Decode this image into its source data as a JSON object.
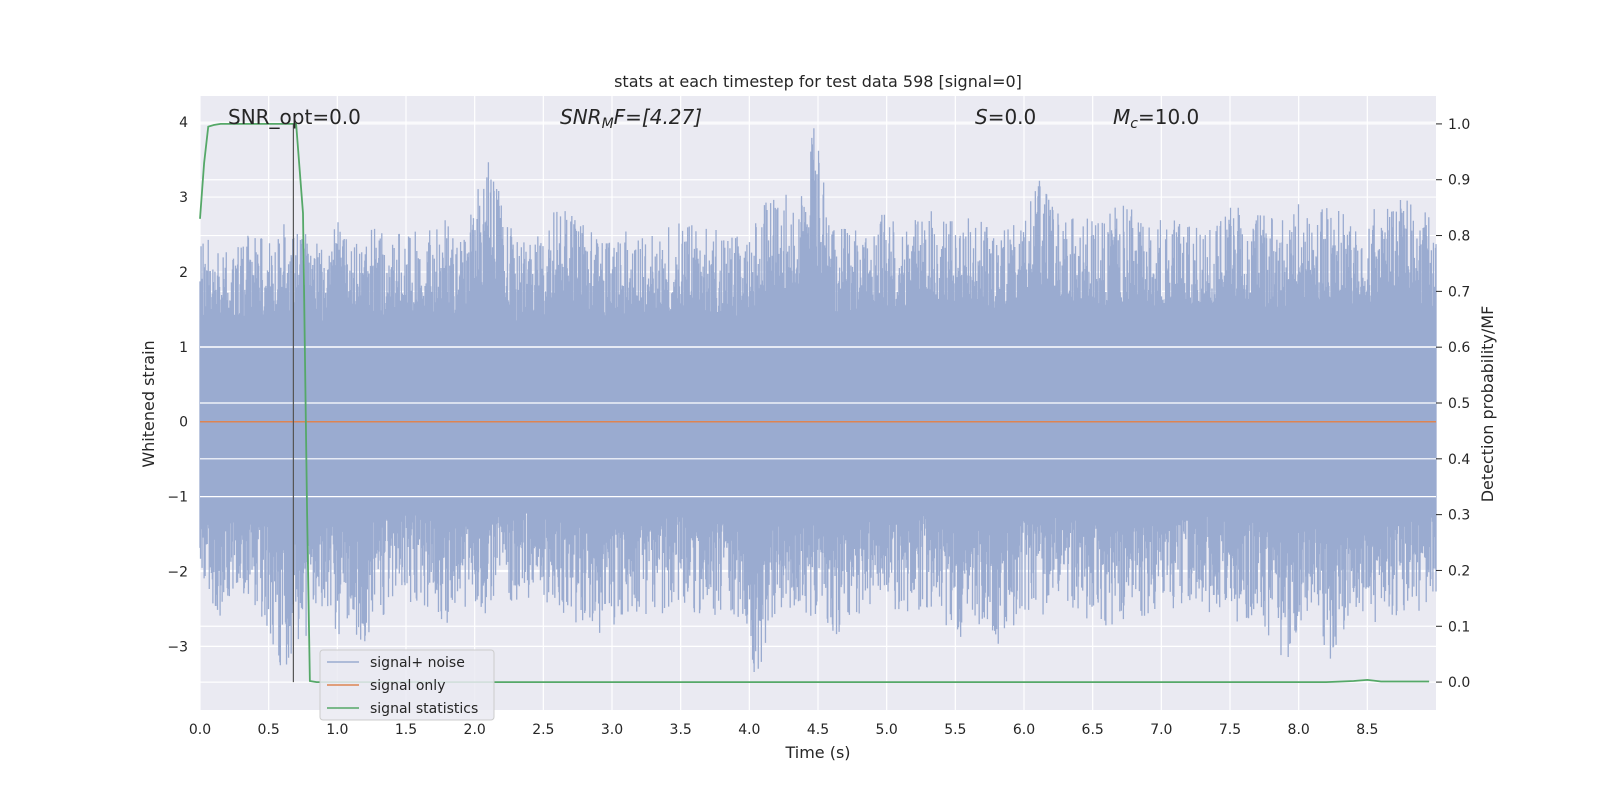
{
  "chart_data": {
    "type": "line",
    "title": "stats at each timestep for test data 598 [signal=0]",
    "xlabel": "Time (s)",
    "ylabel": "Whitened strain",
    "y2label": "Detection probability/MF",
    "xlim": [
      0.0,
      9.0
    ],
    "ylim": [
      -3.85,
      4.35
    ],
    "y2lim": [
      -0.05,
      1.05
    ],
    "x_ticks": [
      "0.0",
      "0.5",
      "1.0",
      "1.5",
      "2.0",
      "2.5",
      "3.0",
      "3.5",
      "4.0",
      "4.5",
      "5.0",
      "5.5",
      "6.0",
      "6.5",
      "7.0",
      "7.5",
      "8.0",
      "8.5"
    ],
    "y_ticks": [
      "−3",
      "−2",
      "−1",
      "0",
      "1",
      "2",
      "3",
      "4"
    ],
    "y2_ticks": [
      "0.0",
      "0.1",
      "0.2",
      "0.3",
      "0.4",
      "0.5",
      "0.6",
      "0.7",
      "0.8",
      "0.9",
      "1.0"
    ],
    "grid": true,
    "legend_position": "lower-left",
    "annotations": {
      "snr_opt": "SNR_opt=0.0",
      "snr_mf_base": "SNR",
      "snr_mf_sub": "M",
      "snr_mf_rest": "F=[4.27]",
      "s_value_var": "S",
      "s_value_rest": "=0.0",
      "mc_var": "M",
      "mc_sub": "c",
      "mc_rest": "=10.0"
    },
    "vertical_marker_x": 0.68,
    "series": [
      {
        "name": "signal+ noise",
        "color": "#9aabd0",
        "axis": "left",
        "envelope": {
          "x": [
            0.0,
            0.12,
            0.25,
            0.4,
            0.5,
            0.6,
            0.7,
            0.9,
            1.0,
            1.1,
            1.2,
            1.25,
            1.4,
            1.6,
            1.8,
            1.9,
            2.1,
            2.3,
            2.5,
            2.6,
            2.9,
            3.1,
            3.3,
            3.5,
            3.7,
            3.9,
            4.05,
            4.2,
            4.35,
            4.47,
            4.6,
            4.8,
            5.0,
            5.1,
            5.3,
            5.5,
            5.7,
            5.8,
            6.0,
            6.1,
            6.3,
            6.5,
            6.7,
            6.9,
            7.1,
            7.3,
            7.5,
            7.7,
            7.9,
            8.0,
            8.1,
            8.25,
            8.4,
            8.6,
            8.8,
            8.95,
            9.0
          ],
          "upper": [
            2.4,
            2.55,
            2.3,
            2.6,
            2.5,
            2.7,
            2.6,
            2.4,
            2.8,
            2.3,
            3.0,
            2.6,
            2.5,
            2.6,
            2.7,
            2.4,
            3.55,
            2.4,
            2.5,
            2.9,
            2.5,
            2.6,
            2.5,
            2.7,
            2.6,
            2.5,
            2.8,
            3.25,
            2.8,
            4.0,
            2.6,
            2.7,
            2.8,
            2.6,
            2.9,
            2.7,
            2.8,
            2.6,
            2.7,
            3.35,
            2.8,
            2.7,
            2.9,
            2.8,
            2.7,
            2.6,
            2.9,
            2.8,
            2.7,
            3.1,
            2.8,
            2.9,
            2.8,
            2.9,
            3.0,
            2.8,
            2.7
          ],
          "lower": [
            -1.9,
            -2.7,
            -2.2,
            -2.5,
            -2.8,
            -3.4,
            -3.1,
            -2.5,
            -2.9,
            -2.6,
            -3.3,
            -2.7,
            -2.5,
            -2.4,
            -2.7,
            -2.5,
            -2.6,
            -2.4,
            -2.4,
            -2.5,
            -2.9,
            -2.6,
            -2.6,
            -2.5,
            -2.7,
            -2.6,
            -3.45,
            -2.6,
            -2.6,
            -2.7,
            -2.9,
            -2.6,
            -2.5,
            -2.6,
            -2.5,
            -2.9,
            -2.8,
            -3.0,
            -2.6,
            -2.6,
            -2.5,
            -2.7,
            -2.8,
            -2.6,
            -2.6,
            -2.5,
            -2.7,
            -2.6,
            -3.3,
            -2.7,
            -2.6,
            -3.3,
            -2.6,
            -2.7,
            -2.6,
            -2.5,
            -2.4
          ]
        }
      },
      {
        "name": "signal only",
        "color": "#dd8452",
        "axis": "left",
        "x": [
          0.0,
          9.0
        ],
        "y": [
          0.0,
          0.0
        ]
      },
      {
        "name": "signal statistics",
        "color": "#55a868",
        "axis": "right",
        "x": [
          0.0,
          0.03,
          0.06,
          0.1,
          0.15,
          0.2,
          0.3,
          0.4,
          0.5,
          0.6,
          0.65,
          0.7,
          0.75,
          0.78,
          0.8,
          0.85,
          1.0,
          2.0,
          3.0,
          4.0,
          5.0,
          6.0,
          7.0,
          8.0,
          8.2,
          8.4,
          8.5,
          8.6,
          8.95
        ],
        "y": [
          0.83,
          0.93,
          0.995,
          0.998,
          1.0,
          1.0,
          1.0,
          1.0,
          1.0,
          1.0,
          1.0,
          1.0,
          0.84,
          0.3,
          0.002,
          0.0,
          0.0,
          0.0,
          0.0,
          0.0,
          0.0,
          0.0,
          0.0,
          0.0,
          0.0,
          0.002,
          0.004,
          0.001,
          0.001
        ]
      }
    ]
  }
}
